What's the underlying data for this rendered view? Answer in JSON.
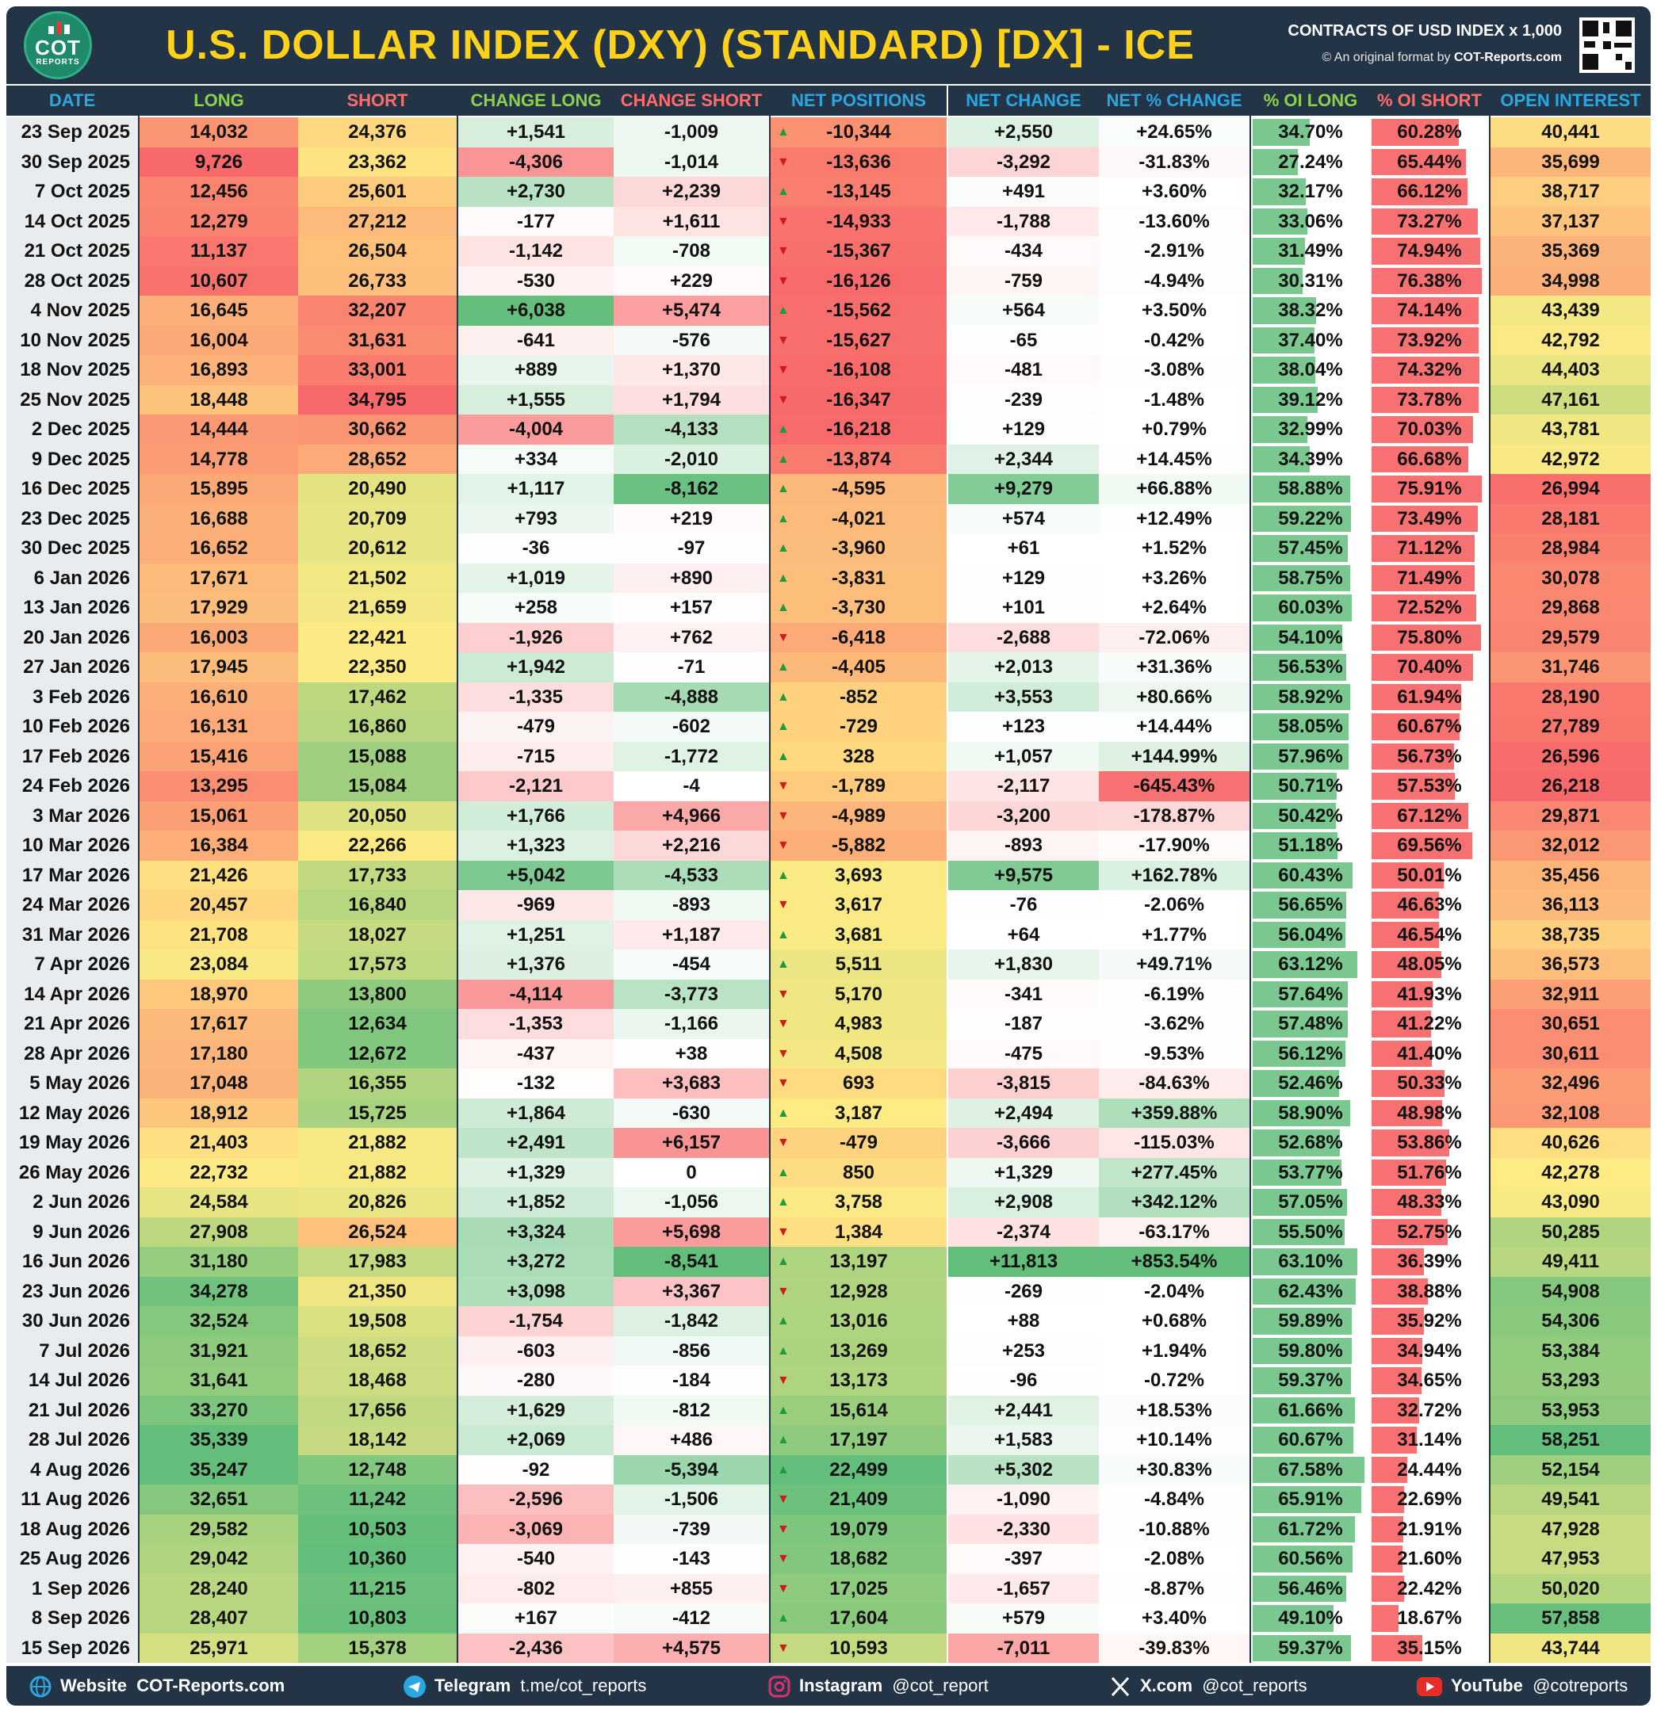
{
  "header": {
    "logo_text": "COT",
    "logo_sub": "REPORTS",
    "title": "U.S. DOLLAR INDEX (DXY) (STANDARD) [DX] - ICE",
    "contracts": "CONTRACTS OF USD INDEX x 1,000",
    "credit_prefix": "© An original format by",
    "credit_site": "COT-Reports.com"
  },
  "columns": [
    "DATE",
    "LONG",
    "SHORT",
    "CHANGE LONG",
    "CHANGE SHORT",
    "NET POSITIONS",
    "NET CHANGE",
    "NET % CHANGE",
    "% OI LONG",
    "% OI SHORT",
    "OPEN INTEREST"
  ],
  "colors": {
    "header_bg": "#243447",
    "title": "#ffd21a",
    "green": "#63be7b",
    "red": "#f8696b",
    "yellow": "#ffeb84",
    "up_arrow": "#1e9b3a",
    "down_arrow": "#d11a1a"
  },
  "chart_data": {
    "type": "table",
    "rows": [
      {
        "date": "23 Sep 2025",
        "long": "14,032",
        "short": "24,376",
        "chg_long": "+1,541",
        "chg_short": "-1,009",
        "dir": "up",
        "net": "-10,344",
        "net_chg": "+2,550",
        "net_pct": "+24.65%",
        "oi_long": "34.70%",
        "oi_short": "60.28%",
        "oi": "40,441"
      },
      {
        "date": "30 Sep 2025",
        "long": "9,726",
        "short": "23,362",
        "chg_long": "-4,306",
        "chg_short": "-1,014",
        "dir": "down",
        "net": "-13,636",
        "net_chg": "-3,292",
        "net_pct": "-31.83%",
        "oi_long": "27.24%",
        "oi_short": "65.44%",
        "oi": "35,699"
      },
      {
        "date": "7 Oct 2025",
        "long": "12,456",
        "short": "25,601",
        "chg_long": "+2,730",
        "chg_short": "+2,239",
        "dir": "up",
        "net": "-13,145",
        "net_chg": "+491",
        "net_pct": "+3.60%",
        "oi_long": "32.17%",
        "oi_short": "66.12%",
        "oi": "38,717"
      },
      {
        "date": "14 Oct 2025",
        "long": "12,279",
        "short": "27,212",
        "chg_long": "-177",
        "chg_short": "+1,611",
        "dir": "down",
        "net": "-14,933",
        "net_chg": "-1,788",
        "net_pct": "-13.60%",
        "oi_long": "33.06%",
        "oi_short": "73.27%",
        "oi": "37,137"
      },
      {
        "date": "21 Oct 2025",
        "long": "11,137",
        "short": "26,504",
        "chg_long": "-1,142",
        "chg_short": "-708",
        "dir": "down",
        "net": "-15,367",
        "net_chg": "-434",
        "net_pct": "-2.91%",
        "oi_long": "31.49%",
        "oi_short": "74.94%",
        "oi": "35,369"
      },
      {
        "date": "28 Oct 2025",
        "long": "10,607",
        "short": "26,733",
        "chg_long": "-530",
        "chg_short": "+229",
        "dir": "down",
        "net": "-16,126",
        "net_chg": "-759",
        "net_pct": "-4.94%",
        "oi_long": "30.31%",
        "oi_short": "76.38%",
        "oi": "34,998"
      },
      {
        "date": "4 Nov 2025",
        "long": "16,645",
        "short": "32,207",
        "chg_long": "+6,038",
        "chg_short": "+5,474",
        "dir": "up",
        "net": "-15,562",
        "net_chg": "+564",
        "net_pct": "+3.50%",
        "oi_long": "38.32%",
        "oi_short": "74.14%",
        "oi": "43,439"
      },
      {
        "date": "10 Nov 2025",
        "long": "16,004",
        "short": "31,631",
        "chg_long": "-641",
        "chg_short": "-576",
        "dir": "down",
        "net": "-15,627",
        "net_chg": "-65",
        "net_pct": "-0.42%",
        "oi_long": "37.40%",
        "oi_short": "73.92%",
        "oi": "42,792"
      },
      {
        "date": "18 Nov 2025",
        "long": "16,893",
        "short": "33,001",
        "chg_long": "+889",
        "chg_short": "+1,370",
        "dir": "down",
        "net": "-16,108",
        "net_chg": "-481",
        "net_pct": "-3.08%",
        "oi_long": "38.04%",
        "oi_short": "74.32%",
        "oi": "44,403"
      },
      {
        "date": "25 Nov 2025",
        "long": "18,448",
        "short": "34,795",
        "chg_long": "+1,555",
        "chg_short": "+1,794",
        "dir": "down",
        "net": "-16,347",
        "net_chg": "-239",
        "net_pct": "-1.48%",
        "oi_long": "39.12%",
        "oi_short": "73.78%",
        "oi": "47,161"
      },
      {
        "date": "2 Dec 2025",
        "long": "14,444",
        "short": "30,662",
        "chg_long": "-4,004",
        "chg_short": "-4,133",
        "dir": "up",
        "net": "-16,218",
        "net_chg": "+129",
        "net_pct": "+0.79%",
        "oi_long": "32.99%",
        "oi_short": "70.03%",
        "oi": "43,781"
      },
      {
        "date": "9 Dec 2025",
        "long": "14,778",
        "short": "28,652",
        "chg_long": "+334",
        "chg_short": "-2,010",
        "dir": "up",
        "net": "-13,874",
        "net_chg": "+2,344",
        "net_pct": "+14.45%",
        "oi_long": "34.39%",
        "oi_short": "66.68%",
        "oi": "42,972"
      },
      {
        "date": "16 Dec 2025",
        "long": "15,895",
        "short": "20,490",
        "chg_long": "+1,117",
        "chg_short": "-8,162",
        "dir": "up",
        "net": "-4,595",
        "net_chg": "+9,279",
        "net_pct": "+66.88%",
        "oi_long": "58.88%",
        "oi_short": "75.91%",
        "oi": "26,994"
      },
      {
        "date": "23 Dec 2025",
        "long": "16,688",
        "short": "20,709",
        "chg_long": "+793",
        "chg_short": "+219",
        "dir": "up",
        "net": "-4,021",
        "net_chg": "+574",
        "net_pct": "+12.49%",
        "oi_long": "59.22%",
        "oi_short": "73.49%",
        "oi": "28,181"
      },
      {
        "date": "30 Dec 2025",
        "long": "16,652",
        "short": "20,612",
        "chg_long": "-36",
        "chg_short": "-97",
        "dir": "up",
        "net": "-3,960",
        "net_chg": "+61",
        "net_pct": "+1.52%",
        "oi_long": "57.45%",
        "oi_short": "71.12%",
        "oi": "28,984"
      },
      {
        "date": "6 Jan 2026",
        "long": "17,671",
        "short": "21,502",
        "chg_long": "+1,019",
        "chg_short": "+890",
        "dir": "up",
        "net": "-3,831",
        "net_chg": "+129",
        "net_pct": "+3.26%",
        "oi_long": "58.75%",
        "oi_short": "71.49%",
        "oi": "30,078"
      },
      {
        "date": "13 Jan 2026",
        "long": "17,929",
        "short": "21,659",
        "chg_long": "+258",
        "chg_short": "+157",
        "dir": "up",
        "net": "-3,730",
        "net_chg": "+101",
        "net_pct": "+2.64%",
        "oi_long": "60.03%",
        "oi_short": "72.52%",
        "oi": "29,868"
      },
      {
        "date": "20 Jan 2026",
        "long": "16,003",
        "short": "22,421",
        "chg_long": "-1,926",
        "chg_short": "+762",
        "dir": "down",
        "net": "-6,418",
        "net_chg": "-2,688",
        "net_pct": "-72.06%",
        "oi_long": "54.10%",
        "oi_short": "75.80%",
        "oi": "29,579"
      },
      {
        "date": "27 Jan 2026",
        "long": "17,945",
        "short": "22,350",
        "chg_long": "+1,942",
        "chg_short": "-71",
        "dir": "up",
        "net": "-4,405",
        "net_chg": "+2,013",
        "net_pct": "+31.36%",
        "oi_long": "56.53%",
        "oi_short": "70.40%",
        "oi": "31,746"
      },
      {
        "date": "3 Feb 2026",
        "long": "16,610",
        "short": "17,462",
        "chg_long": "-1,335",
        "chg_short": "-4,888",
        "dir": "up",
        "net": "-852",
        "net_chg": "+3,553",
        "net_pct": "+80.66%",
        "oi_long": "58.92%",
        "oi_short": "61.94%",
        "oi": "28,190"
      },
      {
        "date": "10 Feb 2026",
        "long": "16,131",
        "short": "16,860",
        "chg_long": "-479",
        "chg_short": "-602",
        "dir": "up",
        "net": "-729",
        "net_chg": "+123",
        "net_pct": "+14.44%",
        "oi_long": "58.05%",
        "oi_short": "60.67%",
        "oi": "27,789"
      },
      {
        "date": "17 Feb 2026",
        "long": "15,416",
        "short": "15,088",
        "chg_long": "-715",
        "chg_short": "-1,772",
        "dir": "up",
        "net": "328",
        "net_chg": "+1,057",
        "net_pct": "+144.99%",
        "oi_long": "57.96%",
        "oi_short": "56.73%",
        "oi": "26,596"
      },
      {
        "date": "24 Feb 2026",
        "long": "13,295",
        "short": "15,084",
        "chg_long": "-2,121",
        "chg_short": "-4",
        "dir": "down",
        "net": "-1,789",
        "net_chg": "-2,117",
        "net_pct": "-645.43%",
        "oi_long": "50.71%",
        "oi_short": "57.53%",
        "oi": "26,218"
      },
      {
        "date": "3 Mar 2026",
        "long": "15,061",
        "short": "20,050",
        "chg_long": "+1,766",
        "chg_short": "+4,966",
        "dir": "down",
        "net": "-4,989",
        "net_chg": "-3,200",
        "net_pct": "-178.87%",
        "oi_long": "50.42%",
        "oi_short": "67.12%",
        "oi": "29,871"
      },
      {
        "date": "10 Mar 2026",
        "long": "16,384",
        "short": "22,266",
        "chg_long": "+1,323",
        "chg_short": "+2,216",
        "dir": "down",
        "net": "-5,882",
        "net_chg": "-893",
        "net_pct": "-17.90%",
        "oi_long": "51.18%",
        "oi_short": "69.56%",
        "oi": "32,012"
      },
      {
        "date": "17 Mar 2026",
        "long": "21,426",
        "short": "17,733",
        "chg_long": "+5,042",
        "chg_short": "-4,533",
        "dir": "up",
        "net": "3,693",
        "net_chg": "+9,575",
        "net_pct": "+162.78%",
        "oi_long": "60.43%",
        "oi_short": "50.01%",
        "oi": "35,456"
      },
      {
        "date": "24 Mar 2026",
        "long": "20,457",
        "short": "16,840",
        "chg_long": "-969",
        "chg_short": "-893",
        "dir": "down",
        "net": "3,617",
        "net_chg": "-76",
        "net_pct": "-2.06%",
        "oi_long": "56.65%",
        "oi_short": "46.63%",
        "oi": "36,113"
      },
      {
        "date": "31 Mar 2026",
        "long": "21,708",
        "short": "18,027",
        "chg_long": "+1,251",
        "chg_short": "+1,187",
        "dir": "up",
        "net": "3,681",
        "net_chg": "+64",
        "net_pct": "+1.77%",
        "oi_long": "56.04%",
        "oi_short": "46.54%",
        "oi": "38,735"
      },
      {
        "date": "7 Apr 2026",
        "long": "23,084",
        "short": "17,573",
        "chg_long": "+1,376",
        "chg_short": "-454",
        "dir": "up",
        "net": "5,511",
        "net_chg": "+1,830",
        "net_pct": "+49.71%",
        "oi_long": "63.12%",
        "oi_short": "48.05%",
        "oi": "36,573"
      },
      {
        "date": "14 Apr 2026",
        "long": "18,970",
        "short": "13,800",
        "chg_long": "-4,114",
        "chg_short": "-3,773",
        "dir": "down",
        "net": "5,170",
        "net_chg": "-341",
        "net_pct": "-6.19%",
        "oi_long": "57.64%",
        "oi_short": "41.93%",
        "oi": "32,911"
      },
      {
        "date": "21 Apr 2026",
        "long": "17,617",
        "short": "12,634",
        "chg_long": "-1,353",
        "chg_short": "-1,166",
        "dir": "down",
        "net": "4,983",
        "net_chg": "-187",
        "net_pct": "-3.62%",
        "oi_long": "57.48%",
        "oi_short": "41.22%",
        "oi": "30,651"
      },
      {
        "date": "28 Apr 2026",
        "long": "17,180",
        "short": "12,672",
        "chg_long": "-437",
        "chg_short": "+38",
        "dir": "down",
        "net": "4,508",
        "net_chg": "-475",
        "net_pct": "-9.53%",
        "oi_long": "56.12%",
        "oi_short": "41.40%",
        "oi": "30,611"
      },
      {
        "date": "5 May 2026",
        "long": "17,048",
        "short": "16,355",
        "chg_long": "-132",
        "chg_short": "+3,683",
        "dir": "down",
        "net": "693",
        "net_chg": "-3,815",
        "net_pct": "-84.63%",
        "oi_long": "52.46%",
        "oi_short": "50.33%",
        "oi": "32,496"
      },
      {
        "date": "12 May 2026",
        "long": "18,912",
        "short": "15,725",
        "chg_long": "+1,864",
        "chg_short": "-630",
        "dir": "up",
        "net": "3,187",
        "net_chg": "+2,494",
        "net_pct": "+359.88%",
        "oi_long": "58.90%",
        "oi_short": "48.98%",
        "oi": "32,108"
      },
      {
        "date": "19 May 2026",
        "long": "21,403",
        "short": "21,882",
        "chg_long": "+2,491",
        "chg_short": "+6,157",
        "dir": "down",
        "net": "-479",
        "net_chg": "-3,666",
        "net_pct": "-115.03%",
        "oi_long": "52.68%",
        "oi_short": "53.86%",
        "oi": "40,626"
      },
      {
        "date": "26 May 2026",
        "long": "22,732",
        "short": "21,882",
        "chg_long": "+1,329",
        "chg_short": "0",
        "dir": "up",
        "net": "850",
        "net_chg": "+1,329",
        "net_pct": "+277.45%",
        "oi_long": "53.77%",
        "oi_short": "51.76%",
        "oi": "42,278"
      },
      {
        "date": "2 Jun 2026",
        "long": "24,584",
        "short": "20,826",
        "chg_long": "+1,852",
        "chg_short": "-1,056",
        "dir": "up",
        "net": "3,758",
        "net_chg": "+2,908",
        "net_pct": "+342.12%",
        "oi_long": "57.05%",
        "oi_short": "48.33%",
        "oi": "43,090"
      },
      {
        "date": "9 Jun 2026",
        "long": "27,908",
        "short": "26,524",
        "chg_long": "+3,324",
        "chg_short": "+5,698",
        "dir": "down",
        "net": "1,384",
        "net_chg": "-2,374",
        "net_pct": "-63.17%",
        "oi_long": "55.50%",
        "oi_short": "52.75%",
        "oi": "50,285"
      },
      {
        "date": "16 Jun 2026",
        "long": "31,180",
        "short": "17,983",
        "chg_long": "+3,272",
        "chg_short": "-8,541",
        "dir": "up",
        "net": "13,197",
        "net_chg": "+11,813",
        "net_pct": "+853.54%",
        "oi_long": "63.10%",
        "oi_short": "36.39%",
        "oi": "49,411"
      },
      {
        "date": "23 Jun 2026",
        "long": "34,278",
        "short": "21,350",
        "chg_long": "+3,098",
        "chg_short": "+3,367",
        "dir": "down",
        "net": "12,928",
        "net_chg": "-269",
        "net_pct": "-2.04%",
        "oi_long": "62.43%",
        "oi_short": "38.88%",
        "oi": "54,908"
      },
      {
        "date": "30 Jun 2026",
        "long": "32,524",
        "short": "19,508",
        "chg_long": "-1,754",
        "chg_short": "-1,842",
        "dir": "up",
        "net": "13,016",
        "net_chg": "+88",
        "net_pct": "+0.68%",
        "oi_long": "59.89%",
        "oi_short": "35.92%",
        "oi": "54,306"
      },
      {
        "date": "7 Jul 2026",
        "long": "31,921",
        "short": "18,652",
        "chg_long": "-603",
        "chg_short": "-856",
        "dir": "up",
        "net": "13,269",
        "net_chg": "+253",
        "net_pct": "+1.94%",
        "oi_long": "59.80%",
        "oi_short": "34.94%",
        "oi": "53,384"
      },
      {
        "date": "14 Jul 2026",
        "long": "31,641",
        "short": "18,468",
        "chg_long": "-280",
        "chg_short": "-184",
        "dir": "down",
        "net": "13,173",
        "net_chg": "-96",
        "net_pct": "-0.72%",
        "oi_long": "59.37%",
        "oi_short": "34.65%",
        "oi": "53,293"
      },
      {
        "date": "21 Jul 2026",
        "long": "33,270",
        "short": "17,656",
        "chg_long": "+1,629",
        "chg_short": "-812",
        "dir": "up",
        "net": "15,614",
        "net_chg": "+2,441",
        "net_pct": "+18.53%",
        "oi_long": "61.66%",
        "oi_short": "32.72%",
        "oi": "53,953"
      },
      {
        "date": "28 Jul 2026",
        "long": "35,339",
        "short": "18,142",
        "chg_long": "+2,069",
        "chg_short": "+486",
        "dir": "up",
        "net": "17,197",
        "net_chg": "+1,583",
        "net_pct": "+10.14%",
        "oi_long": "60.67%",
        "oi_short": "31.14%",
        "oi": "58,251"
      },
      {
        "date": "4 Aug 2026",
        "long": "35,247",
        "short": "12,748",
        "chg_long": "-92",
        "chg_short": "-5,394",
        "dir": "up",
        "net": "22,499",
        "net_chg": "+5,302",
        "net_pct": "+30.83%",
        "oi_long": "67.58%",
        "oi_short": "24.44%",
        "oi": "52,154"
      },
      {
        "date": "11 Aug 2026",
        "long": "32,651",
        "short": "11,242",
        "chg_long": "-2,596",
        "chg_short": "-1,506",
        "dir": "down",
        "net": "21,409",
        "net_chg": "-1,090",
        "net_pct": "-4.84%",
        "oi_long": "65.91%",
        "oi_short": "22.69%",
        "oi": "49,541"
      },
      {
        "date": "18 Aug 2026",
        "long": "29,582",
        "short": "10,503",
        "chg_long": "-3,069",
        "chg_short": "-739",
        "dir": "down",
        "net": "19,079",
        "net_chg": "-2,330",
        "net_pct": "-10.88%",
        "oi_long": "61.72%",
        "oi_short": "21.91%",
        "oi": "47,928"
      },
      {
        "date": "25 Aug 2026",
        "long": "29,042",
        "short": "10,360",
        "chg_long": "-540",
        "chg_short": "-143",
        "dir": "down",
        "net": "18,682",
        "net_chg": "-397",
        "net_pct": "-2.08%",
        "oi_long": "60.56%",
        "oi_short": "21.60%",
        "oi": "47,953"
      },
      {
        "date": "1 Sep 2026",
        "long": "28,240",
        "short": "11,215",
        "chg_long": "-802",
        "chg_short": "+855",
        "dir": "down",
        "net": "17,025",
        "net_chg": "-1,657",
        "net_pct": "-8.87%",
        "oi_long": "56.46%",
        "oi_short": "22.42%",
        "oi": "50,020"
      },
      {
        "date": "8 Sep 2026",
        "long": "28,407",
        "short": "10,803",
        "chg_long": "+167",
        "chg_short": "-412",
        "dir": "up",
        "net": "17,604",
        "net_chg": "+579",
        "net_pct": "+3.40%",
        "oi_long": "49.10%",
        "oi_short": "18.67%",
        "oi": "57,858"
      },
      {
        "date": "15 Sep 2026",
        "long": "25,971",
        "short": "15,378",
        "chg_long": "-2,436",
        "chg_short": "+4,575",
        "dir": "down",
        "net": "10,593",
        "net_chg": "-7,011",
        "net_pct": "-39.83%",
        "oi_long": "59.37%",
        "oi_short": "35.15%",
        "oi": "43,744"
      }
    ]
  },
  "footer": {
    "website_label": "Website",
    "website_value": "COT-Reports.com",
    "telegram_label": "Telegram",
    "telegram_value": "t.me/cot_reports",
    "instagram_label": "Instagram",
    "instagram_value": "@cot_report",
    "x_label": "X.com",
    "x_value": "@cot_reports",
    "youtube_label": "YouTube",
    "youtube_value": "@cotreports"
  }
}
